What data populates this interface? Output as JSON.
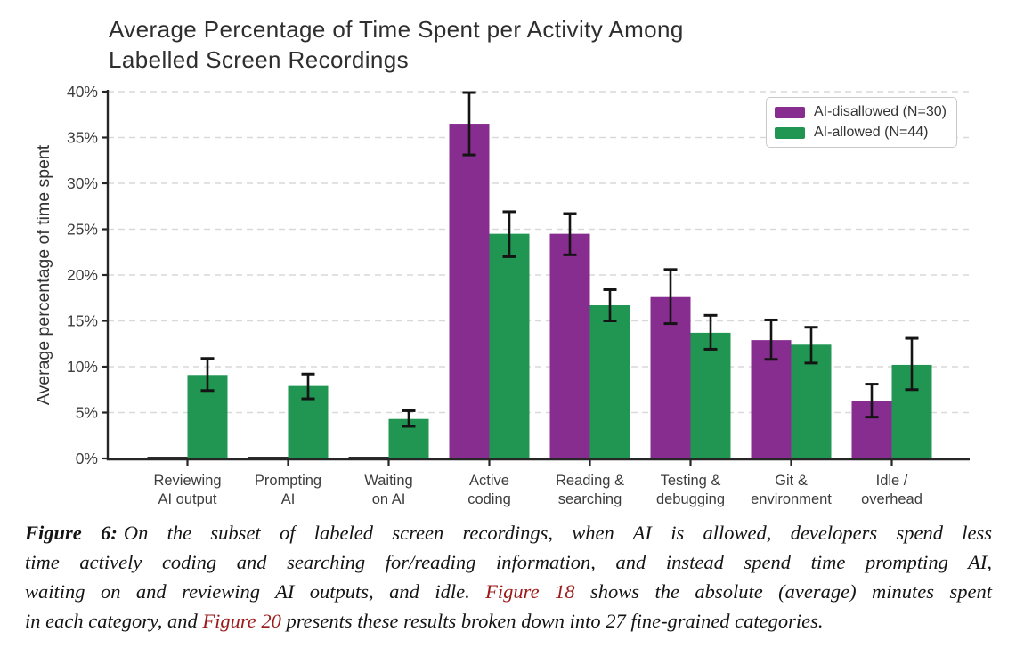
{
  "title": {
    "line1": "Average Percentage of Time Spent per Activity Among",
    "line2": "Labelled Screen Recordings"
  },
  "colors": {
    "ai_disallowed": "#872D8F",
    "ai_allowed": "#219653",
    "tiny_bar": "#2f2f2f",
    "error_bar": "#141414",
    "grid": "#d9d9d9",
    "axis": "#262626",
    "tick_label": "#3d3d3d",
    "axis_label": "#333333",
    "title_text": "#2e2e2e",
    "link": "#9B1B1B",
    "legend_border": "#c9c9c9"
  },
  "legend": {
    "items": [
      {
        "label": "AI-disallowed (N=30)",
        "color_key": "ai_disallowed"
      },
      {
        "label": "AI-allowed (N=44)",
        "color_key": "ai_allowed"
      }
    ]
  },
  "chart_data": {
    "type": "bar",
    "title": "Average Percentage of Time Spent per Activity Among Labelled Screen Recordings",
    "xlabel": "",
    "ylabel": "Average percentage of time spent",
    "ylim": [
      0,
      40
    ],
    "ytick_step": 5,
    "ytick_suffix": "%",
    "grid": "horizontal-dashed",
    "legend_position": "top-right",
    "categories": [
      "Reviewing AI output",
      "Prompting AI",
      "Waiting on AI",
      "Active coding",
      "Reading & searching",
      "Testing & debugging",
      "Git & environment",
      "Idle / overhead"
    ],
    "category_labels_two_line": [
      [
        "Reviewing",
        "AI output"
      ],
      [
        "Prompting",
        "AI"
      ],
      [
        "Waiting",
        "on AI"
      ],
      [
        "Active",
        "coding"
      ],
      [
        "Reading &",
        "searching"
      ],
      [
        "Testing &",
        "debugging"
      ],
      [
        "Git &",
        "environment"
      ],
      [
        "Idle /",
        "overhead"
      ]
    ],
    "series": [
      {
        "name": "AI-disallowed (N=30)",
        "color_key": "ai_disallowed",
        "values": [
          0.1,
          0.1,
          0.1,
          36.5,
          24.5,
          17.6,
          12.9,
          6.3
        ],
        "error_low": [
          null,
          null,
          null,
          33.1,
          22.2,
          14.7,
          10.8,
          4.5
        ],
        "error_high": [
          null,
          null,
          null,
          39.9,
          26.7,
          20.6,
          15.1,
          8.1
        ]
      },
      {
        "name": "AI-allowed (N=44)",
        "color_key": "ai_allowed",
        "values": [
          9.1,
          7.9,
          4.3,
          24.5,
          16.7,
          13.7,
          12.4,
          10.2
        ],
        "error_low": [
          7.4,
          6.5,
          3.5,
          22.0,
          15.0,
          11.9,
          10.4,
          7.5
        ],
        "error_high": [
          10.9,
          9.2,
          5.2,
          26.9,
          18.4,
          15.6,
          14.3,
          13.1
        ]
      }
    ]
  },
  "caption": {
    "lines": [
      {
        "justify": true,
        "segments": [
          {
            "t": "Figure 6:",
            "s": "bold"
          },
          {
            "t": "On the subset of labeled screen recordings, when AI is allowed, developers spend less",
            "s": "n"
          }
        ]
      },
      {
        "justify": true,
        "segments": [
          {
            "t": "time actively coding and searching for/reading information, and instead spend time prompting AI,",
            "s": "n"
          }
        ]
      },
      {
        "justify": true,
        "segments": [
          {
            "t": "waiting on and reviewing AI outputs, and idle. ",
            "s": "n"
          },
          {
            "t": "Figure 18",
            "s": "link"
          },
          {
            "t": " shows the absolute (average) minutes spent",
            "s": "n"
          }
        ]
      },
      {
        "justify": false,
        "segments": [
          {
            "t": "in each category, and ",
            "s": "n"
          },
          {
            "t": "Figure 20",
            "s": "link"
          },
          {
            "t": " presents these results broken down into 27 fine-grained categories.",
            "s": "n"
          }
        ]
      }
    ]
  }
}
